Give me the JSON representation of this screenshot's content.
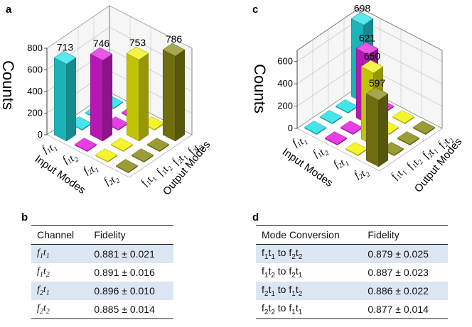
{
  "panels": {
    "a": "a",
    "b": "b",
    "c": "c",
    "d": "d"
  },
  "axes": {
    "zlabel": "Counts",
    "input_label": "Input Modes",
    "output_label": "Output Modes"
  },
  "mode_labels": {
    "in": [
      "f1t1",
      "f1t2",
      "f2t1",
      "f2t2"
    ],
    "out": [
      "f1t1",
      "f1t2",
      "f2t1",
      "f2t2"
    ]
  },
  "colors": {
    "cyan": "#22e0e6",
    "magenta": "#e21ee0",
    "yellow": "#f2f20a",
    "olive": "#8a8a14",
    "grid": "#bbbbbb"
  },
  "chart_data": [
    {
      "panel": "a",
      "type": "bar3d",
      "title": "",
      "zlabel": "Counts",
      "xlabel": "Input Modes",
      "ylabel": "Output Modes",
      "zlim": [
        0,
        800
      ],
      "zticks": [
        0,
        200,
        400,
        600,
        800
      ],
      "bars": [
        {
          "in": "f1t1",
          "out": "f1t1",
          "value": 713,
          "color": "cyan"
        },
        {
          "in": "f1t2",
          "out": "f1t2",
          "value": 746,
          "color": "magenta"
        },
        {
          "in": "f2t1",
          "out": "f2t1",
          "value": 753,
          "color": "yellow"
        },
        {
          "in": "f2t2",
          "out": "f2t2",
          "value": 786,
          "color": "olive"
        }
      ]
    },
    {
      "panel": "c",
      "type": "bar3d",
      "title": "",
      "zlabel": "Counts",
      "xlabel": "Input Modes",
      "ylabel": "Output Modes",
      "zlim": [
        0,
        700
      ],
      "zticks": [
        0,
        200,
        400,
        600
      ],
      "bars": [
        {
          "in": "f1t1",
          "out": "f2t2",
          "value": 698,
          "color": "cyan"
        },
        {
          "in": "f1t2",
          "out": "f2t1",
          "value": 621,
          "color": "magenta"
        },
        {
          "in": "f2t1",
          "out": "f1t2",
          "value": 650,
          "color": "yellow"
        },
        {
          "in": "f2t2",
          "out": "f1t1",
          "value": 597,
          "color": "olive"
        }
      ]
    }
  ],
  "table_b": {
    "headers": [
      "Channel",
      "Fidelity"
    ],
    "rows": [
      {
        "mode": "f1t1",
        "fidelity": "0.881 ± 0.021"
      },
      {
        "mode": "f1t2",
        "fidelity": "0.891 ± 0.016"
      },
      {
        "mode": "f2t1",
        "fidelity": "0.896 ± 0.010"
      },
      {
        "mode": "f2t2",
        "fidelity": "0.885 ± 0.014"
      }
    ]
  },
  "table_d": {
    "headers": [
      "Mode Conversion",
      "Fidelity"
    ],
    "rows": [
      {
        "from": "f1t1",
        "to_word": "to",
        "target": "f2t2",
        "fidelity": "0.879 ± 0.025"
      },
      {
        "from": "f1t2",
        "to_word": "to",
        "target": "f2t1",
        "fidelity": "0.887 ± 0.023"
      },
      {
        "from": "f2t1",
        "to_word": "to",
        "target": "f1t2",
        "fidelity": "0.886 ± 0.022"
      },
      {
        "from": "f2t2",
        "to_word": "to",
        "target": "f1t1",
        "fidelity": "0.877 ± 0.014"
      }
    ]
  }
}
